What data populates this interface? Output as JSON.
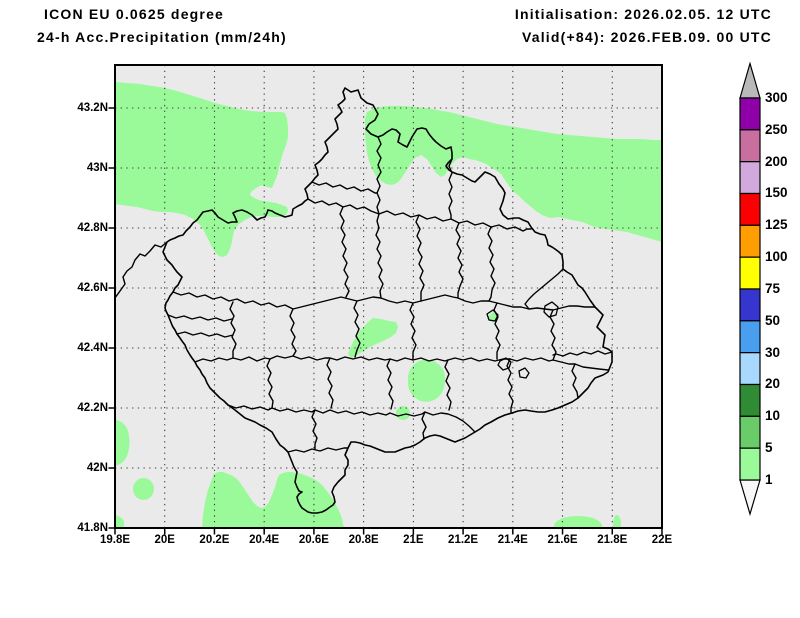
{
  "header": {
    "model_line": "ICON EU 0.0625 degree",
    "param_line": "24-h Acc.Precipitation (mm/24h)",
    "init_line": "Initialisation: 2026.02.05. 12 UTC",
    "valid_line": "Valid(+84): 2026.FEB.09. 00 UTC"
  },
  "map": {
    "x_ticks": [
      "19.8E",
      "20E",
      "20.2E",
      "20.4E",
      "20.6E",
      "20.8E",
      "21E",
      "21.2E",
      "21.4E",
      "21.6E",
      "21.8E",
      "22E"
    ],
    "y_ticks": [
      "43.2N",
      "43N",
      "42.8N",
      "42.6N",
      "42.4N",
      "42.2N",
      "42N",
      "41.8N"
    ],
    "background_color": "#eaeaea",
    "precip_shade_color": "#9afa9a",
    "boundary_color": "#000000",
    "grid_dot_color": "#3c3c3c"
  },
  "colorbar": {
    "labels": [
      "300",
      "250",
      "200",
      "150",
      "125",
      "100",
      "75",
      "50",
      "30",
      "20",
      "10",
      "5",
      "1"
    ],
    "segment_colors_top_to_bottom": [
      "#8f00a8",
      "#c96f9f",
      "#d2a9dd",
      "#fb0000",
      "#ff9e00",
      "#ffff00",
      "#3636cf",
      "#4a9ef0",
      "#a8d8fd",
      "#2f8b34",
      "#69cc69",
      "#9afa9a"
    ],
    "overflow_top_color": "#b9b9b9",
    "underflow_bottom_color": "#f8f8f8"
  }
}
